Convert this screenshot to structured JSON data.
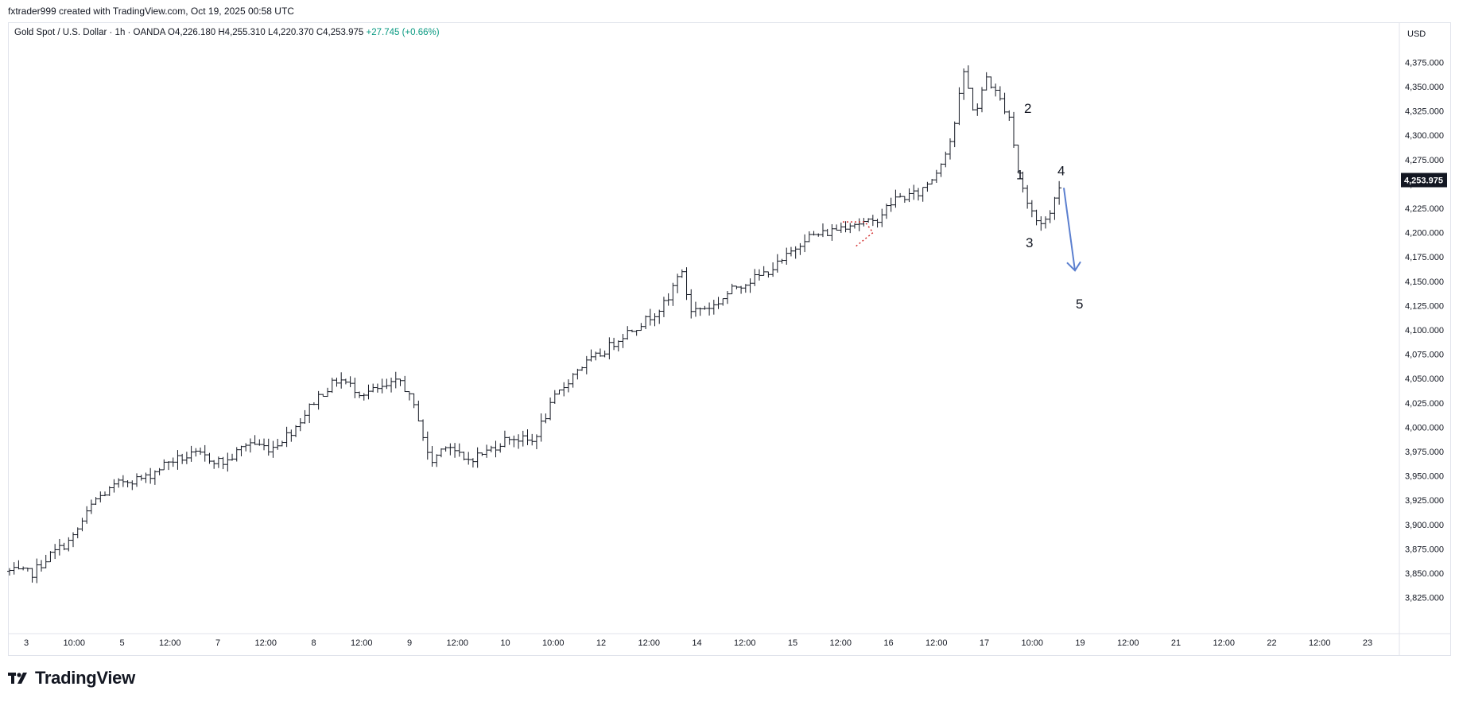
{
  "header": {
    "credit": "fxtrader999 created with TradingView.com, Oct 19, 2025 00:58 UTC"
  },
  "legend": {
    "symbol": "Gold Spot / U.S. Dollar · 1h · OANDA",
    "open_label": "O",
    "open": "4,226.180",
    "high_label": "H",
    "high": "4,255.310",
    "low_label": "L",
    "low": "4,220.370",
    "close_label": "C",
    "close": "4,253.975",
    "change": "+27.745 (+0.66%)"
  },
  "currency": "USD",
  "brand": "TradingView",
  "colors": {
    "bars": "#131722",
    "arrow": "#5b7fcf",
    "channel": "#d32f2f",
    "price_label_bg": "#131722"
  },
  "chart_data": {
    "type": "ohlc",
    "title": "Gold Spot / U.S. Dollar · 1h · OANDA",
    "ylabel": "USD",
    "ylim": [
      3810,
      4390
    ],
    "y_ticks": [
      3825,
      3850,
      3875,
      3900,
      3925,
      3950,
      3975,
      4000,
      4025,
      4050,
      4075,
      4100,
      4125,
      4150,
      4175,
      4200,
      4225,
      4250,
      4275,
      4300,
      4325,
      4350,
      4375
    ],
    "y_tick_labels": [
      "3,825.000",
      "3,850.000",
      "3,875.000",
      "3,900.000",
      "3,925.000",
      "3,950.000",
      "3,975.000",
      "4,000.000",
      "4,025.000",
      "4,050.000",
      "4,075.000",
      "4,100.000",
      "4,125.000",
      "4,150.000",
      "4,175.000",
      "4,200.000",
      "4,225.000",
      "4,250.000",
      "4,275.000",
      "4,300.000",
      "4,325.000",
      "4,350.000",
      "4,375.000"
    ],
    "x_tick_labels": [
      "3",
      "10:00",
      "5",
      "12:00",
      "7",
      "12:00",
      "8",
      "12:00",
      "9",
      "12:00",
      "10",
      "10:00",
      "12",
      "12:00",
      "14",
      "12:00",
      "15",
      "12:00",
      "16",
      "12:00",
      "17",
      "10:00",
      "19",
      "12:00",
      "21",
      "12:00",
      "22",
      "12:00",
      "23"
    ],
    "last_price": 4253.975,
    "last_price_label": "4,253.975",
    "path_note_series": "approximate hourly price path (bar index, price)",
    "price_path": [
      [
        0,
        3852
      ],
      [
        20,
        3850
      ],
      [
        35,
        3868
      ],
      [
        55,
        3885
      ],
      [
        75,
        3925
      ],
      [
        100,
        3945
      ],
      [
        120,
        3948
      ],
      [
        140,
        3965
      ],
      [
        165,
        3972
      ],
      [
        190,
        3963
      ],
      [
        210,
        3985
      ],
      [
        230,
        3978
      ],
      [
        250,
        3998
      ],
      [
        270,
        4030
      ],
      [
        290,
        4050
      ],
      [
        310,
        4035
      ],
      [
        330,
        4040
      ],
      [
        345,
        4048
      ],
      [
        360,
        4010
      ],
      [
        370,
        3962
      ],
      [
        385,
        3985
      ],
      [
        400,
        3965
      ],
      [
        420,
        3975
      ],
      [
        440,
        3990
      ],
      [
        460,
        3985
      ],
      [
        480,
        4030
      ],
      [
        500,
        4060
      ],
      [
        520,
        4075
      ],
      [
        540,
        4095
      ],
      [
        560,
        4110
      ],
      [
        580,
        4130
      ],
      [
        590,
        4165
      ],
      [
        600,
        4120
      ],
      [
        620,
        4125
      ],
      [
        640,
        4145
      ],
      [
        660,
        4155
      ],
      [
        680,
        4170
      ],
      [
        700,
        4195
      ],
      [
        720,
        4200
      ],
      [
        740,
        4210
      ],
      [
        760,
        4210
      ],
      [
        780,
        4235
      ],
      [
        800,
        4240
      ],
      [
        815,
        4260
      ],
      [
        830,
        4300
      ],
      [
        840,
        4365
      ],
      [
        850,
        4320
      ],
      [
        860,
        4360
      ],
      [
        870,
        4340
      ],
      [
        880,
        4320
      ],
      [
        888,
        4262
      ],
      [
        896,
        4230
      ],
      [
        905,
        4210
      ],
      [
        915,
        4215
      ],
      [
        925,
        4254
      ]
    ],
    "annotations": {
      "wave_labels": [
        "1",
        "2",
        "3",
        "4",
        "5"
      ],
      "projection": "down arrow from wave 4 to wave 5"
    }
  }
}
